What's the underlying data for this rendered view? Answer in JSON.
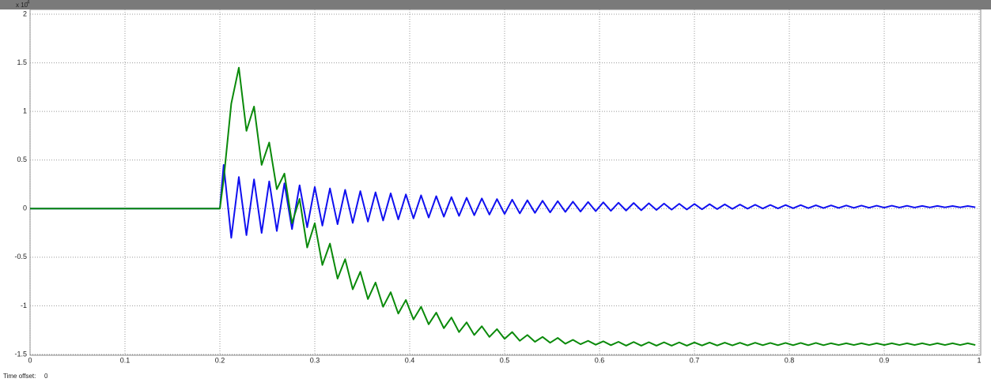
{
  "chart_data": {
    "type": "line",
    "y_multiplier_base": "x 10",
    "y_multiplier_exponent": "4",
    "footer_label": "Time offset:",
    "footer_value": "0",
    "xlim": [
      0,
      1
    ],
    "xticks": [
      0,
      0.1,
      0.2,
      0.3,
      0.4,
      0.5,
      0.6,
      0.7,
      0.8,
      0.9,
      1
    ],
    "ylim": [
      -1.5,
      2
    ],
    "yticks": [
      -1.5,
      -1,
      -0.5,
      0,
      0.5,
      1,
      1.5,
      2
    ],
    "grid": true,
    "x": [
      0,
      0.2,
      0.204,
      0.212,
      0.22,
      0.228,
      0.236,
      0.244,
      0.252,
      0.26,
      0.268,
      0.276,
      0.284,
      0.292,
      0.3,
      0.308,
      0.316,
      0.324,
      0.332,
      0.34,
      0.348,
      0.356,
      0.364,
      0.372,
      0.38,
      0.388,
      0.396,
      0.404,
      0.412,
      0.42,
      0.428,
      0.436,
      0.444,
      0.452,
      0.46,
      0.468,
      0.476,
      0.484,
      0.492,
      0.5,
      0.508,
      0.516,
      0.524,
      0.532,
      0.54,
      0.548,
      0.556,
      0.564,
      0.572,
      0.58,
      0.588,
      0.596,
      0.604,
      0.612,
      0.62,
      0.628,
      0.636,
      0.644,
      0.652,
      0.66,
      0.668,
      0.676,
      0.684,
      0.692,
      0.7,
      0.708,
      0.716,
      0.724,
      0.732,
      0.74,
      0.748,
      0.756,
      0.764,
      0.772,
      0.78,
      0.788,
      0.796,
      0.804,
      0.812,
      0.82,
      0.828,
      0.836,
      0.844,
      0.852,
      0.86,
      0.868,
      0.876,
      0.884,
      0.892,
      0.9,
      0.908,
      0.916,
      0.924,
      0.932,
      0.94,
      0.948,
      0.956,
      0.964,
      0.972,
      0.98,
      0.988,
      0.996
    ],
    "series": [
      {
        "color": "#1010f0",
        "values": [
          0,
          0,
          0.45,
          -0.3,
          0.325,
          -0.273,
          0.301,
          -0.25,
          0.28,
          -0.23,
          0.26,
          -0.211,
          0.24,
          -0.192,
          0.223,
          -0.175,
          0.208,
          -0.16,
          0.193,
          -0.147,
          0.18,
          -0.134,
          0.168,
          -0.122,
          0.157,
          -0.111,
          0.146,
          -0.101,
          0.137,
          -0.092,
          0.128,
          -0.083,
          0.119,
          -0.075,
          0.112,
          -0.068,
          0.105,
          -0.061,
          0.098,
          -0.055,
          0.092,
          -0.049,
          0.086,
          -0.044,
          0.081,
          -0.039,
          0.077,
          -0.034,
          0.072,
          -0.03,
          0.068,
          -0.026,
          0.065,
          -0.023,
          0.061,
          -0.02,
          0.058,
          -0.017,
          0.055,
          -0.014,
          0.052,
          -0.011,
          0.05,
          -0.009,
          0.048,
          -0.007,
          0.046,
          -0.005,
          0.044,
          -0.003,
          0.042,
          -0.001,
          0.04,
          0.001,
          0.038,
          0.002,
          0.037,
          0.004,
          0.036,
          0.005,
          0.034,
          0.006,
          0.033,
          0.007,
          0.032,
          0.008,
          0.031,
          0.009,
          0.03,
          0.01,
          0.03,
          0.011,
          0.029,
          0.011,
          0.028,
          0.012,
          0.028,
          0.013,
          0.027,
          0.013,
          0.027,
          0.014
        ]
      },
      {
        "color": "#0a8a0a",
        "values": [
          0,
          0,
          0.3,
          1.08,
          1.45,
          0.8,
          1.05,
          0.45,
          0.68,
          0.2,
          0.36,
          -0.15,
          0.1,
          -0.4,
          -0.15,
          -0.58,
          -0.36,
          -0.72,
          -0.52,
          -0.83,
          -0.65,
          -0.93,
          -0.76,
          -1.01,
          -0.86,
          -1.08,
          -0.94,
          -1.14,
          -1.01,
          -1.19,
          -1.07,
          -1.23,
          -1.12,
          -1.27,
          -1.17,
          -1.3,
          -1.21,
          -1.32,
          -1.24,
          -1.34,
          -1.27,
          -1.36,
          -1.3,
          -1.37,
          -1.32,
          -1.38,
          -1.33,
          -1.39,
          -1.35,
          -1.395,
          -1.36,
          -1.4,
          -1.365,
          -1.405,
          -1.37,
          -1.41,
          -1.372,
          -1.41,
          -1.374,
          -1.41,
          -1.375,
          -1.41,
          -1.376,
          -1.41,
          -1.377,
          -1.408,
          -1.378,
          -1.408,
          -1.379,
          -1.407,
          -1.38,
          -1.407,
          -1.38,
          -1.405,
          -1.382,
          -1.405,
          -1.382,
          -1.405,
          -1.382,
          -1.405,
          -1.382,
          -1.405,
          -1.385,
          -1.403,
          -1.385,
          -1.403,
          -1.385,
          -1.403,
          -1.385,
          -1.403,
          -1.385,
          -1.403,
          -1.385,
          -1.403,
          -1.385,
          -1.403,
          -1.385,
          -1.403,
          -1.385,
          -1.403,
          -1.385,
          -1.403
        ]
      }
    ]
  }
}
